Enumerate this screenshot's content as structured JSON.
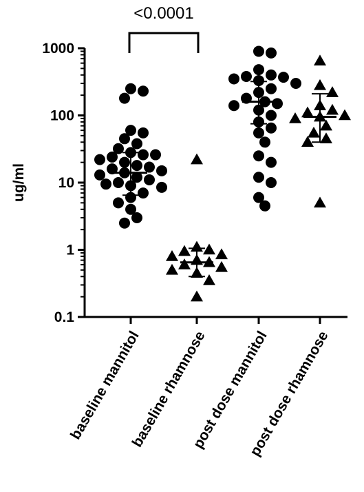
{
  "chart_data": {
    "type": "scatter",
    "title": "",
    "xlabel": "",
    "ylabel": "ug/ml",
    "yscale": "log",
    "ylim": [
      0.1,
      1000
    ],
    "yticks": [
      {
        "value": 0.1,
        "label": "0.1"
      },
      {
        "value": 1,
        "label": "1"
      },
      {
        "value": 10,
        "label": "10"
      },
      {
        "value": 100,
        "label": "100"
      },
      {
        "value": 1000,
        "label": "1000"
      }
    ],
    "grid": false,
    "legend": "none",
    "colors": {
      "marker": "#000000",
      "axis": "#000000"
    },
    "categories": [
      "baseline mannitol",
      "baseline rhamnose",
      "post dose mannitol",
      "post dose rhamnose"
    ],
    "groups": [
      {
        "category": "baseline mannitol",
        "marker": "circle",
        "center": 14,
        "err_low": 6.5,
        "err_high": 28,
        "points": [
          250,
          230,
          180,
          60,
          55,
          45,
          38,
          32,
          28,
          26,
          26,
          24,
          22,
          20,
          18,
          17,
          16,
          15,
          14,
          13,
          12,
          11,
          10,
          9.5,
          9,
          8.5,
          7,
          6,
          5,
          4,
          3,
          2.5
        ]
      },
      {
        "category": "baseline rhamnose",
        "marker": "triangle",
        "center": 0.65,
        "err_low": 0.4,
        "err_high": 1.05,
        "points": [
          22,
          1.1,
          1.0,
          0.95,
          0.85,
          0.8,
          0.7,
          0.65,
          0.6,
          0.55,
          0.5,
          0.45,
          0.35,
          0.2
        ]
      },
      {
        "category": "post dose mannitol",
        "marker": "circle",
        "center": 160,
        "err_low": 75,
        "err_high": 320,
        "points": [
          900,
          850,
          480,
          400,
          380,
          370,
          350,
          330,
          300,
          250,
          220,
          180,
          160,
          150,
          140,
          120,
          100,
          80,
          65,
          55,
          40,
          25,
          20,
          12,
          10,
          6,
          4.5
        ]
      },
      {
        "category": "post dose rhamnose",
        "marker": "triangle",
        "center": 95,
        "err_low": 40,
        "err_high": 210,
        "points": [
          650,
          280,
          220,
          140,
          120,
          110,
          100,
          95,
          90,
          70,
          55,
          45,
          40,
          5
        ]
      }
    ],
    "annotations": [
      {
        "text": "<0.0001",
        "from": "baseline mannitol",
        "to": "baseline rhamnose"
      }
    ]
  }
}
